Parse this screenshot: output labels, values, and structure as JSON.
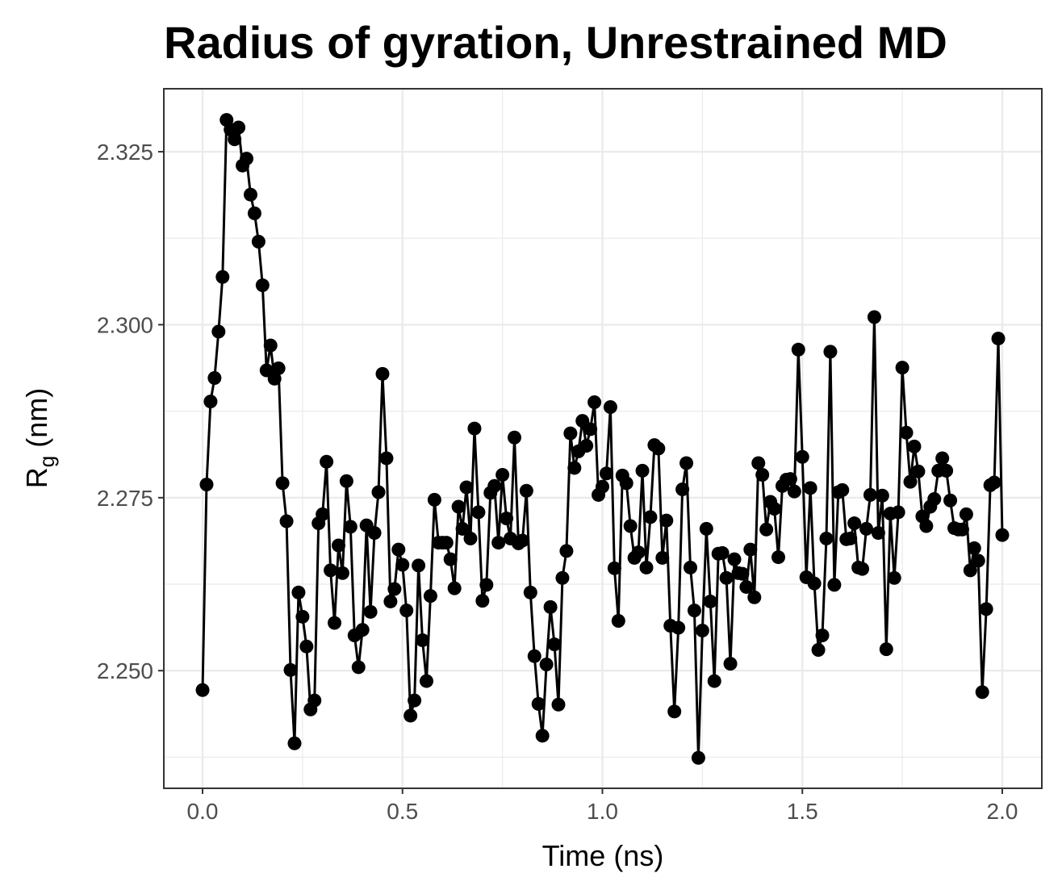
{
  "chart_data": {
    "type": "line",
    "title": "Radius of gyration, Unrestrained MD",
    "xlabel": "Time (ns)",
    "ylabel": "Rg (nm)",
    "xlim": [
      -0.0969,
      2.0989
    ],
    "ylim": [
      2.233,
      2.3341
    ],
    "xticks": [
      {
        "value": 0,
        "label": "0.0"
      },
      0.5,
      {
        "value": 1,
        "label": "1.0"
      },
      1.5,
      {
        "value": 2,
        "label": "2.0"
      }
    ],
    "yticks": [
      {
        "value": 2.25,
        "label": "2.250"
      },
      2.275,
      {
        "value": 2.3,
        "label": "2.300"
      },
      2.325
    ],
    "xminorticks": [
      0.25,
      0.75,
      1.25,
      1.75
    ],
    "yminorticks": [
      2.2375,
      2.2625,
      2.2875,
      2.3125
    ],
    "grid": true,
    "series": [
      {
        "color": "#000000",
        "x": [
          0,
          0.01,
          0.02,
          0.03,
          0.04,
          0.05,
          0.06,
          0.07,
          0.08,
          0.09,
          0.1,
          0.11,
          0.12,
          0.13,
          0.14,
          0.15,
          0.16,
          0.17,
          0.18,
          0.19,
          0.2,
          0.21,
          0.22,
          0.23,
          0.24,
          0.25,
          0.26,
          0.27,
          0.28,
          0.29,
          0.3,
          0.31,
          0.32,
          0.33,
          0.34,
          0.35,
          0.36,
          0.37,
          0.38,
          0.39,
          0.4,
          0.41,
          0.42,
          0.43,
          0.44,
          0.45,
          0.46,
          0.47,
          0.48,
          0.49,
          0.5,
          0.51,
          0.52,
          0.53,
          0.54,
          0.55,
          0.56,
          0.57,
          0.58,
          0.59,
          0.6,
          0.61,
          0.62,
          0.63,
          0.64,
          0.65,
          0.66,
          0.67,
          0.68,
          0.69,
          0.7,
          0.71,
          0.72,
          0.73,
          0.74,
          0.75,
          0.76,
          0.77,
          0.78,
          0.79,
          0.8,
          0.81,
          0.82,
          0.83,
          0.84,
          0.85,
          0.86,
          0.87,
          0.88,
          0.89,
          0.9,
          0.91,
          0.92,
          0.93,
          0.94,
          0.95,
          0.96,
          0.97,
          0.98,
          0.99,
          1,
          1.01,
          1.02,
          1.03,
          1.04,
          1.05,
          1.06,
          1.07,
          1.08,
          1.09,
          1.1,
          1.11,
          1.12,
          1.13,
          1.14,
          1.15,
          1.16,
          1.17,
          1.18,
          1.19,
          1.2,
          1.21,
          1.22,
          1.23,
          1.24,
          1.25,
          1.26,
          1.27,
          1.28,
          1.29,
          1.3,
          1.31,
          1.32,
          1.33,
          1.34,
          1.35,
          1.36,
          1.37,
          1.38,
          1.39,
          1.4,
          1.41,
          1.42,
          1.43,
          1.44,
          1.45,
          1.46,
          1.47,
          1.48,
          1.49,
          1.5,
          1.51,
          1.52,
          1.53,
          1.54,
          1.55,
          1.56,
          1.57,
          1.58,
          1.59,
          1.6,
          1.61,
          1.62,
          1.63,
          1.64,
          1.65,
          1.66,
          1.67,
          1.68,
          1.69,
          1.7,
          1.71,
          1.72,
          1.73,
          1.74,
          1.75,
          1.76,
          1.77,
          1.78,
          1.79,
          1.8,
          1.81,
          1.82,
          1.83,
          1.84,
          1.85,
          1.86,
          1.87,
          1.88,
          1.89,
          1.9,
          1.91,
          1.92,
          1.93,
          1.94,
          1.95,
          1.96,
          1.97,
          1.98,
          1.99,
          2
        ],
        "values": [
          2.2472,
          2.2769,
          2.2889,
          2.2923,
          2.299,
          2.3069,
          2.3296,
          2.3282,
          2.3268,
          2.3285,
          2.323,
          2.324,
          2.3188,
          2.3161,
          2.312,
          2.3057,
          2.2934,
          2.297,
          2.2922,
          2.2937,
          2.2771,
          2.2716,
          2.2501,
          2.2395,
          2.2613,
          2.2578,
          2.2535,
          2.2444,
          2.2457,
          2.2713,
          2.2726,
          2.2802,
          2.2645,
          2.2569,
          2.2681,
          2.2641,
          2.2774,
          2.2708,
          2.2551,
          2.2505,
          2.2559,
          2.271,
          2.2585,
          2.2699,
          2.2758,
          2.2929,
          2.2807,
          2.26,
          2.2618,
          2.2675,
          2.2653,
          2.2587,
          2.2435,
          2.2457,
          2.2652,
          2.2544,
          2.2485,
          2.2608,
          2.2747,
          2.2685,
          2.2685,
          2.2685,
          2.2661,
          2.2619,
          2.2737,
          2.2705,
          2.2765,
          2.2691,
          2.285,
          2.2729,
          2.2601,
          2.2624,
          2.2757,
          2.2767,
          2.2685,
          2.2783,
          2.272,
          2.2691,
          2.2837,
          2.2684,
          2.2688,
          2.276,
          2.2613,
          2.2521,
          2.2452,
          2.2406,
          2.2509,
          2.2592,
          2.2538,
          2.2451,
          2.2634,
          2.2673,
          2.2843,
          2.2793,
          2.2817,
          2.2861,
          2.2825,
          2.2849,
          2.2888,
          2.2754,
          2.2766,
          2.2785,
          2.2881,
          2.2648,
          2.2572,
          2.2782,
          2.2771,
          2.2709,
          2.2663,
          2.2671,
          2.2789,
          2.2649,
          2.2722,
          2.2826,
          2.2821,
          2.2663,
          2.2717,
          2.2565,
          2.2441,
          2.2562,
          2.2762,
          2.28,
          2.2649,
          2.2587,
          2.2374,
          2.2558,
          2.2705,
          2.26,
          2.2485,
          2.2669,
          2.267,
          2.2634,
          2.251,
          2.2661,
          2.2641,
          2.264,
          2.2621,
          2.2675,
          2.2606,
          2.28,
          2.2783,
          2.2704,
          2.2744,
          2.2734,
          2.2664,
          2.2767,
          2.2776,
          2.2777,
          2.2759,
          2.2964,
          2.2809,
          2.2635,
          2.2764,
          2.2626,
          2.253,
          2.2551,
          2.2691,
          2.2961,
          2.2624,
          2.2758,
          2.2761,
          2.269,
          2.2691,
          2.2713,
          2.2649,
          2.2647,
          2.2705,
          2.2754,
          2.3011,
          2.2699,
          2.2753,
          2.2531,
          2.2727,
          2.2634,
          2.2729,
          2.2938,
          2.2844,
          2.2773,
          2.2824,
          2.2788,
          2.2723,
          2.2709,
          2.2737,
          2.2748,
          2.2789,
          2.2807,
          2.2789,
          2.2746,
          2.2706,
          2.2704,
          2.2704,
          2.2726,
          2.2645,
          2.2677,
          2.2659,
          2.2469,
          2.2589,
          2.2768,
          2.2772,
          2.298,
          2.2696
        ]
      }
    ]
  }
}
